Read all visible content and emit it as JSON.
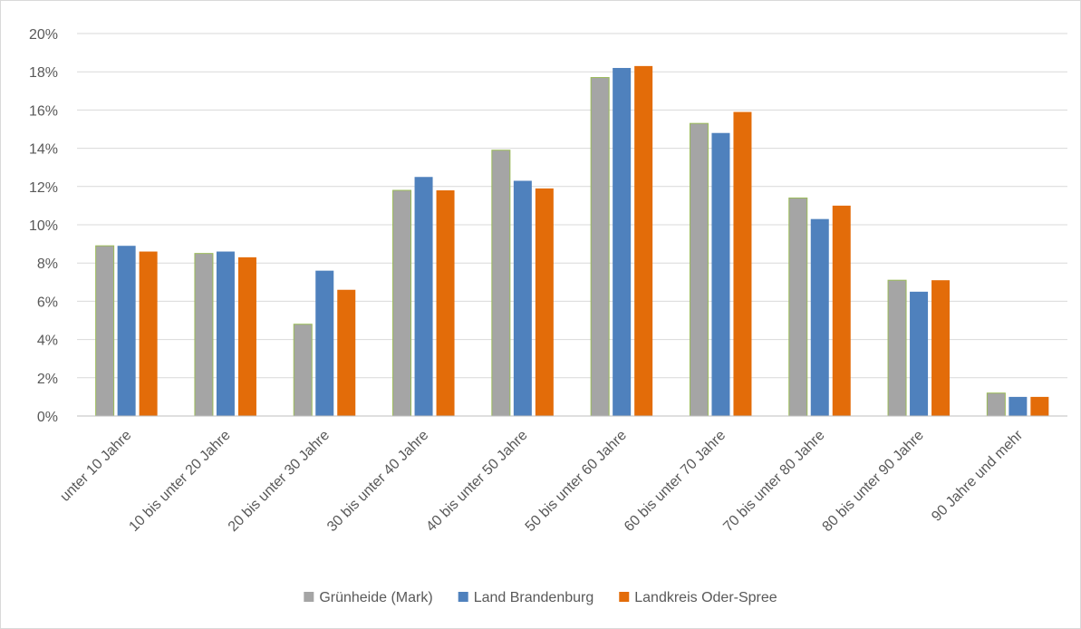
{
  "chart_data": {
    "type": "bar",
    "categories": [
      "unter 10 Jahre",
      "10 bis unter 20 Jahre",
      "20 bis unter 30 Jahre",
      "30 bis unter 40 Jahre",
      "40 bis unter 50 Jahre",
      "50 bis unter 60 Jahre",
      "60 bis unter 70 Jahre",
      "70 bis unter 80 Jahre",
      "80 bis unter 90 Jahre",
      "90 Jahre und mehr"
    ],
    "series": [
      {
        "name": "Grünheide (Mark)",
        "color": "#a5a5a5",
        "values": [
          8.9,
          8.5,
          4.8,
          11.8,
          13.9,
          17.7,
          15.3,
          11.4,
          7.1,
          1.2
        ]
      },
      {
        "name": "Land Brandenburg",
        "color": "#4f81bd",
        "values": [
          8.9,
          8.6,
          7.6,
          12.5,
          12.3,
          18.2,
          14.8,
          10.3,
          6.5,
          1.0
        ]
      },
      {
        "name": "Landkreis Oder-Spree",
        "color": "#e36c09",
        "values": [
          8.6,
          8.3,
          6.6,
          11.8,
          11.9,
          18.3,
          15.9,
          11.0,
          7.1,
          1.0
        ]
      }
    ],
    "y_ticks": [
      "0%",
      "2%",
      "4%",
      "6%",
      "8%",
      "10%",
      "12%",
      "14%",
      "16%",
      "18%",
      "20%"
    ],
    "ylim": [
      0,
      20
    ],
    "y_unit": "%",
    "grid": true,
    "legend_position": "bottom-center",
    "title": "",
    "xlabel": "",
    "ylabel": ""
  }
}
